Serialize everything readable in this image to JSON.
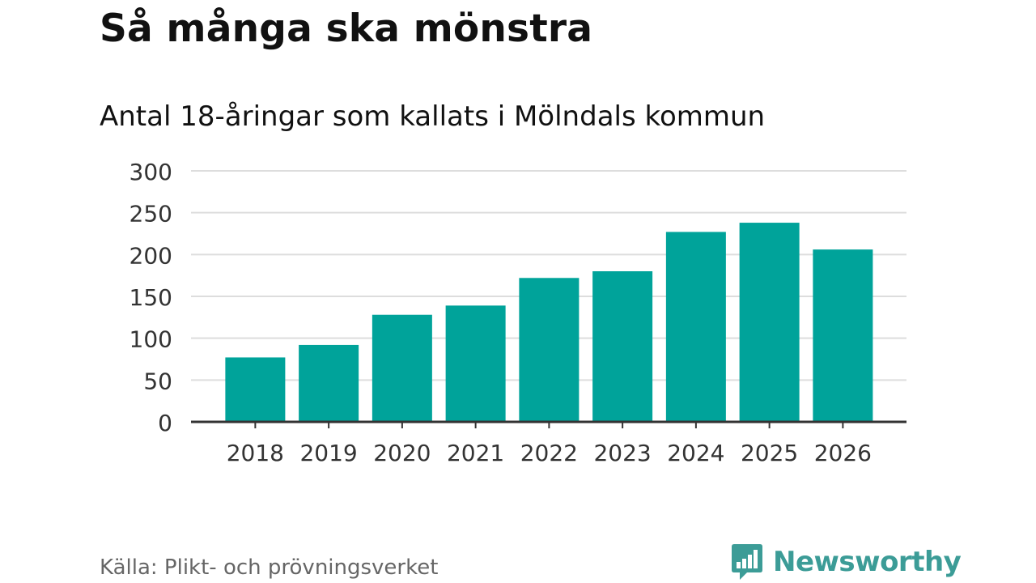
{
  "header": {
    "title": "Så många ska mönstra",
    "subtitle": "Antal 18-åringar som kallats i Mölndals kommun"
  },
  "footer": {
    "source": "Källa: Plikt- och prövningsverket",
    "brand": "Newsworthy"
  },
  "colors": {
    "bar": "#00a39a",
    "brand": "#3c9c97",
    "grid": "#dddddd",
    "axis": "#333333"
  },
  "chart_data": {
    "type": "bar",
    "categories": [
      "2018",
      "2019",
      "2020",
      "2021",
      "2022",
      "2023",
      "2024",
      "2025",
      "2026"
    ],
    "values": [
      77,
      92,
      128,
      139,
      172,
      180,
      227,
      238,
      206
    ],
    "ylim": [
      0,
      300
    ],
    "yticks": [
      0,
      50,
      100,
      150,
      200,
      250,
      300
    ],
    "grid": true,
    "legend": "none"
  }
}
